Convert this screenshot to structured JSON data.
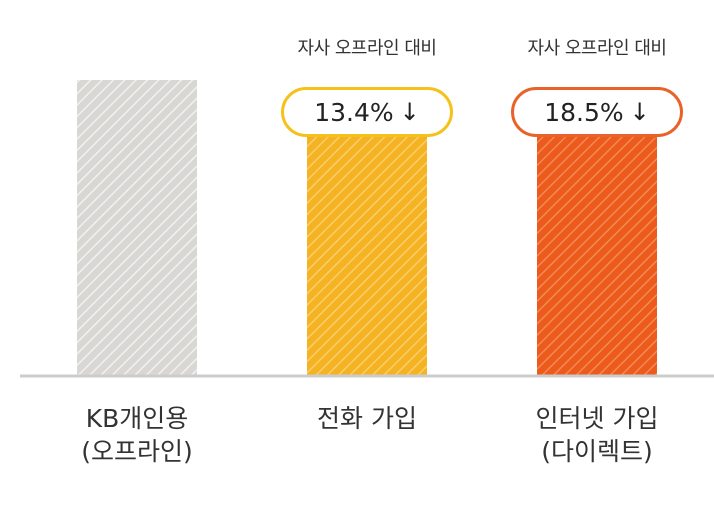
{
  "chart_data": {
    "type": "bar",
    "categories": [
      "KB개인용\n(오프라인)",
      "전화 가입",
      "인터넷 가입\n(다이렉트)"
    ],
    "values": [
      100,
      86.6,
      81.5
    ],
    "ylim": [
      0,
      100
    ],
    "title": "",
    "xlabel": "",
    "ylabel": "",
    "grid": false,
    "annotations": [
      {
        "category_index": 1,
        "label": "자사 오프라인 대비",
        "value": "13.4%",
        "arrow": "↓"
      },
      {
        "category_index": 2,
        "label": "자사 오프라인 대비",
        "value": "18.5%",
        "arrow": "↓"
      }
    ]
  },
  "colors": {
    "offline": "#d9d7d3",
    "phone": "#f5b323",
    "internet": "#ec5a1c",
    "axis": "#cccccc",
    "badge_phone_border": "#f5c21b",
    "badge_internet_border": "#e8622a",
    "dashed_phone": "#f5a623",
    "dashed_internet": "#e8622a"
  }
}
